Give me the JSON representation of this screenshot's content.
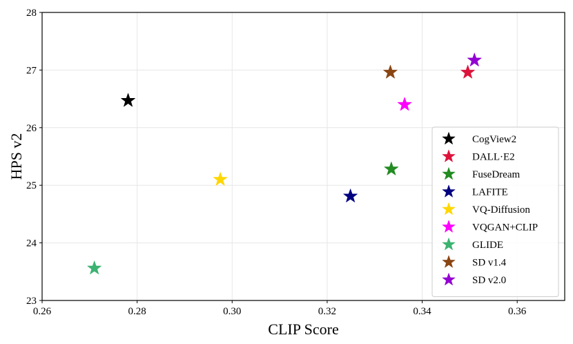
{
  "chart_data": {
    "type": "scatter",
    "title": "",
    "xlabel": "CLIP Score",
    "ylabel": "HPS v2",
    "xlim": [
      0.26,
      0.37
    ],
    "ylim": [
      23,
      28
    ],
    "xticks": [
      "0.26",
      "0.28",
      "0.30",
      "0.32",
      "0.34",
      "0.36"
    ],
    "yticks": [
      "23",
      "24",
      "25",
      "26",
      "27",
      "28"
    ],
    "grid": true,
    "legend_position": "lower-right",
    "marker": "star",
    "series": [
      {
        "name": "CogView2",
        "color": "#000000",
        "x": 0.2781,
        "y": 26.47
      },
      {
        "name": "DALL·E2",
        "color": "#dc143c",
        "x": 0.3496,
        "y": 26.96
      },
      {
        "name": "FuseDream",
        "color": "#228b22",
        "x": 0.3335,
        "y": 25.28
      },
      {
        "name": "LAFITE",
        "color": "#000080",
        "x": 0.3249,
        "y": 24.81
      },
      {
        "name": "VQ-Diffusion",
        "color": "#ffd700",
        "x": 0.2975,
        "y": 25.1
      },
      {
        "name": "VQGAN+CLIP",
        "color": "#ff00ff",
        "x": 0.3363,
        "y": 26.4
      },
      {
        "name": "GLIDE",
        "color": "#3cb371",
        "x": 0.271,
        "y": 23.56
      },
      {
        "name": "SD v1.4",
        "color": "#8b4513",
        "x": 0.3333,
        "y": 26.96
      },
      {
        "name": "SD v2.0",
        "color": "#9400d3",
        "x": 0.351,
        "y": 27.17
      }
    ]
  }
}
